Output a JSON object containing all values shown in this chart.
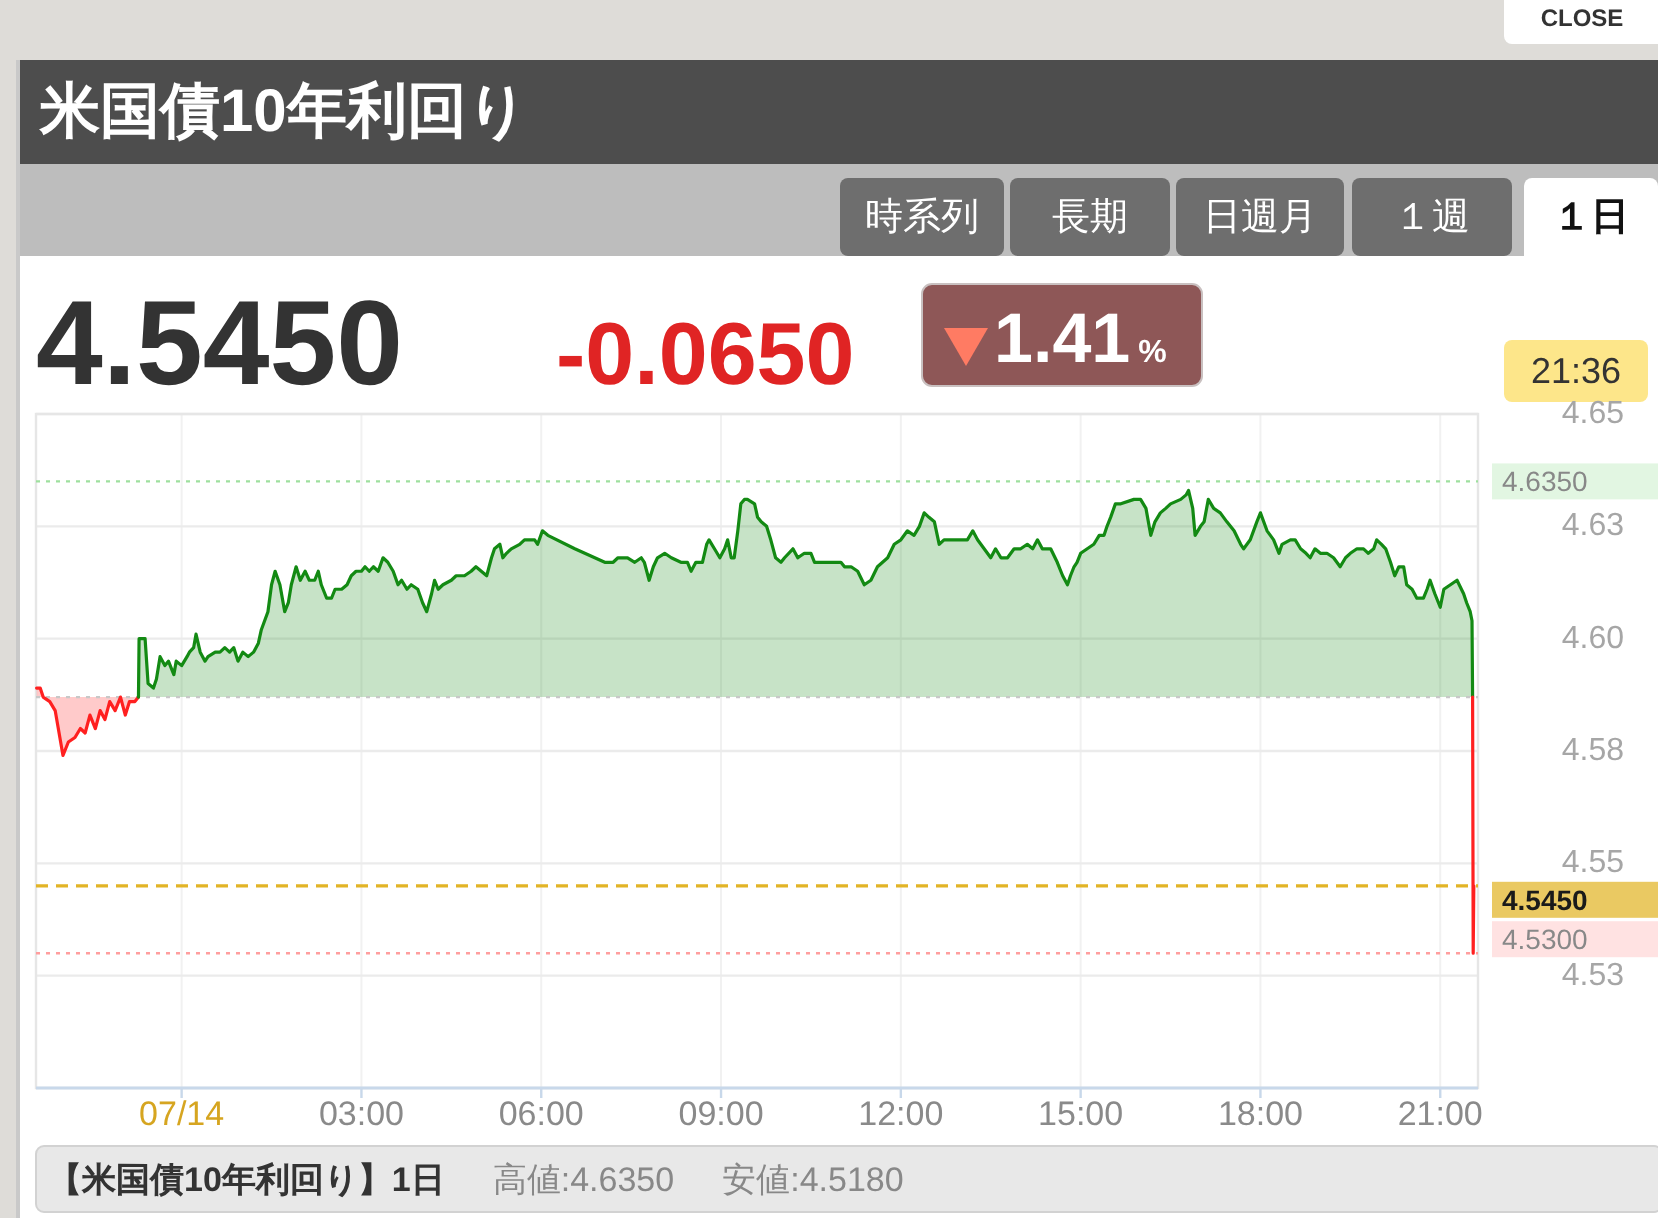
{
  "chart_data": {
    "type": "area",
    "title": "米国債10年利回り",
    "annotations": [
      "CLOSE",
      "時系列",
      "長期",
      "日週月",
      "１週",
      "１日",
      "4.5450",
      "-0.0650",
      "1.41%",
      "21:36",
      "【米国債10年利回り】1日",
      "高値:4.6350",
      "安値:4.5180"
    ],
    "xlim": [
      -2.43,
      21.63
    ],
    "xticks": [
      {
        "value": 0,
        "label": "07/14"
      },
      {
        "value": 3,
        "label": "03:00"
      },
      {
        "value": 6,
        "label": "06:00"
      },
      {
        "value": 9,
        "label": "09:00"
      },
      {
        "value": 12,
        "label": "12:00"
      },
      {
        "value": 15,
        "label": "15:00"
      },
      {
        "value": 18,
        "label": "18:00"
      },
      {
        "value": 21,
        "label": "21:00"
      }
    ],
    "ylim": [
      4.5,
      4.65
    ],
    "yticks": [
      4.65,
      {
        "value": 4.625,
        "label": "4.63"
      },
      {
        "value": 4.6,
        "label": "4.60"
      },
      {
        "value": 4.575,
        "label": "4.58"
      },
      4.55,
      {
        "value": 4.525,
        "label": "4.53"
      }
    ],
    "grid": true,
    "ref_lines": [
      {
        "axis": "y",
        "value": 4.587,
        "color": "#c8c8c8",
        "line_style": "dotted"
      },
      {
        "axis": "y",
        "value": 4.635,
        "label": "4.6350",
        "color": "#9ee09e",
        "line_style": "dotted"
      },
      {
        "axis": "y",
        "value": 4.545,
        "label": "4.5450",
        "color": "#e2b426",
        "line_style": "dashed"
      },
      {
        "axis": "y",
        "value": 4.53,
        "label": "4.5300",
        "color": "#ff9e9e",
        "line_style": "dotted"
      }
    ],
    "series": [
      {
        "color": "#ff2020",
        "x": [
          -2.42,
          -2.36,
          -2.31,
          -2.2,
          -2.11,
          -1.98,
          -1.89,
          -1.78,
          -1.69,
          -1.61,
          -1.53,
          -1.44,
          -1.36,
          -1.28,
          -1.2,
          -1.11,
          -1.02,
          -0.94,
          -0.87,
          -0.78,
          -0.72
        ],
        "values": [
          4.589,
          4.589,
          4.587,
          4.586,
          4.584,
          4.574,
          4.577,
          4.578,
          4.58,
          4.579,
          4.583,
          4.58,
          4.584,
          4.582,
          4.586,
          4.584,
          4.587,
          4.583,
          4.586,
          4.586,
          4.587
        ]
      },
      {
        "color": "#138a13",
        "x": [
          -0.72,
          -0.71,
          -0.61,
          -0.56,
          -0.47,
          -0.42,
          -0.36,
          -0.28,
          -0.22,
          -0.13,
          -0.09,
          0,
          0.09,
          0.13,
          0.2,
          0.24,
          0.31,
          0.39,
          0.44,
          0.56,
          0.64,
          0.72,
          0.8,
          0.87,
          0.94,
          1.02,
          1.11,
          1.2,
          1.28,
          1.33,
          1.44,
          1.5,
          1.56,
          1.64,
          1.72,
          1.78,
          1.83,
          1.91,
          1.98,
          2.06,
          2.13,
          2.22,
          2.28,
          2.33,
          2.42,
          2.5,
          2.56,
          2.67,
          2.76,
          2.83,
          2.91,
          3,
          3.06,
          3.13,
          3.2,
          3.28,
          3.36,
          3.44,
          3.53,
          3.61,
          3.67,
          3.76,
          3.83,
          3.94,
          4.02,
          4.09,
          4.17,
          4.22,
          4.28,
          4.36,
          4.5,
          4.58,
          4.72,
          4.83,
          4.91,
          5,
          5.09,
          5.17,
          5.22,
          5.31,
          5.36,
          5.42,
          5.5,
          5.64,
          5.72,
          5.89,
          5.94,
          6.02,
          6.11,
          6.56,
          7.06,
          7.2,
          7.28,
          7.44,
          7.56,
          7.67,
          7.72,
          7.8,
          7.87,
          7.94,
          8.06,
          8.17,
          8.33,
          8.44,
          8.5,
          8.58,
          8.69,
          8.76,
          8.8,
          8.89,
          8.98,
          9.06,
          9.11,
          9.17,
          9.22,
          9.28,
          9.33,
          9.39,
          9.44,
          9.56,
          9.61,
          9.67,
          9.76,
          9.83,
          9.91,
          10,
          10.06,
          10.2,
          10.28,
          10.39,
          10.5,
          10.56,
          10.72,
          11,
          11.06,
          11.17,
          11.28,
          11.39,
          11.5,
          11.61,
          11.78,
          11.89,
          12,
          12.11,
          12.22,
          12.31,
          12.39,
          12.47,
          12.56,
          12.64,
          12.72,
          13.11,
          13.2,
          13.28,
          13.39,
          13.5,
          13.58,
          13.67,
          13.78,
          13.89,
          14,
          14.11,
          14.2,
          14.28,
          14.36,
          14.5,
          14.61,
          14.7,
          14.78,
          14.83,
          14.89,
          14.94,
          15,
          15.11,
          15.22,
          15.31,
          15.39,
          15.44,
          15.5,
          15.58,
          15.67,
          15.89,
          16,
          16.09,
          16.17,
          16.24,
          16.33,
          16.42,
          16.5,
          16.67,
          16.76,
          16.8,
          16.87,
          16.91,
          17,
          17.06,
          17.13,
          17.22,
          17.33,
          17.44,
          17.56,
          17.67,
          17.72,
          17.83,
          17.94,
          18,
          18.11,
          18.22,
          18.31,
          18.36,
          18.5,
          18.58,
          18.67,
          18.76,
          18.83,
          18.91,
          19,
          19.11,
          19.22,
          19.33,
          19.42,
          19.5,
          19.61,
          19.72,
          19.8,
          19.89,
          19.94,
          20.02,
          20.09,
          20.17,
          20.24,
          20.31,
          20.39,
          20.44,
          20.53,
          20.61,
          20.72,
          20.78,
          20.83,
          20.91,
          21,
          21.06,
          21.17,
          21.28,
          21.39,
          21.44,
          21.5,
          21.53,
          21.54
        ],
        "values": [
          4.587,
          4.6,
          4.6,
          4.59,
          4.589,
          4.591,
          4.596,
          4.594,
          4.595,
          4.592,
          4.595,
          4.594,
          4.596,
          4.597,
          4.598,
          4.601,
          4.597,
          4.595,
          4.596,
          4.597,
          4.597,
          4.598,
          4.597,
          4.598,
          4.595,
          4.597,
          4.596,
          4.597,
          4.599,
          4.602,
          4.606,
          4.612,
          4.615,
          4.612,
          4.606,
          4.608,
          4.612,
          4.616,
          4.613,
          4.615,
          4.613,
          4.613,
          4.615,
          4.612,
          4.609,
          4.609,
          4.611,
          4.611,
          4.612,
          4.614,
          4.615,
          4.615,
          4.616,
          4.615,
          4.616,
          4.615,
          4.618,
          4.617,
          4.615,
          4.612,
          4.613,
          4.611,
          4.612,
          4.611,
          4.608,
          4.606,
          4.61,
          4.613,
          4.611,
          4.612,
          4.613,
          4.614,
          4.614,
          4.615,
          4.616,
          4.615,
          4.614,
          4.618,
          4.62,
          4.621,
          4.618,
          4.619,
          4.62,
          4.621,
          4.622,
          4.622,
          4.621,
          4.624,
          4.623,
          4.62,
          4.617,
          4.617,
          4.618,
          4.618,
          4.617,
          4.618,
          4.617,
          4.613,
          4.616,
          4.618,
          4.619,
          4.618,
          4.617,
          4.617,
          4.615,
          4.617,
          4.617,
          4.621,
          4.622,
          4.62,
          4.618,
          4.62,
          4.622,
          4.618,
          4.618,
          4.624,
          4.63,
          4.631,
          4.631,
          4.63,
          4.627,
          4.626,
          4.625,
          4.622,
          4.618,
          4.617,
          4.618,
          4.62,
          4.618,
          4.619,
          4.619,
          4.617,
          4.617,
          4.617,
          4.616,
          4.616,
          4.615,
          4.612,
          4.613,
          4.616,
          4.618,
          4.621,
          4.622,
          4.624,
          4.623,
          4.625,
          4.628,
          4.627,
          4.626,
          4.621,
          4.622,
          4.622,
          4.624,
          4.622,
          4.62,
          4.618,
          4.62,
          4.618,
          4.618,
          4.62,
          4.62,
          4.621,
          4.62,
          4.622,
          4.62,
          4.62,
          4.617,
          4.614,
          4.612,
          4.614,
          4.616,
          4.617,
          4.619,
          4.62,
          4.621,
          4.623,
          4.623,
          4.625,
          4.627,
          4.63,
          4.63,
          4.631,
          4.631,
          4.629,
          4.623,
          4.626,
          4.628,
          4.629,
          4.63,
          4.631,
          4.632,
          4.633,
          4.629,
          4.623,
          4.625,
          4.626,
          4.631,
          4.629,
          4.628,
          4.626,
          4.624,
          4.621,
          4.62,
          4.622,
          4.626,
          4.628,
          4.624,
          4.622,
          4.619,
          4.621,
          4.622,
          4.622,
          4.62,
          4.619,
          4.618,
          4.62,
          4.619,
          4.619,
          4.618,
          4.616,
          4.618,
          4.619,
          4.62,
          4.62,
          4.619,
          4.62,
          4.622,
          4.621,
          4.62,
          4.617,
          4.614,
          4.616,
          4.616,
          4.612,
          4.611,
          4.609,
          4.609,
          4.611,
          4.613,
          4.61,
          4.607,
          4.611,
          4.612,
          4.613,
          4.61,
          4.608,
          4.606,
          4.604,
          4.587
        ]
      },
      {
        "type": "line",
        "color": "#ff2020",
        "x": [
          21.54,
          21.55,
          21.56
        ],
        "values": [
          4.587,
          4.53,
          4.545
        ]
      }
    ]
  }
}
